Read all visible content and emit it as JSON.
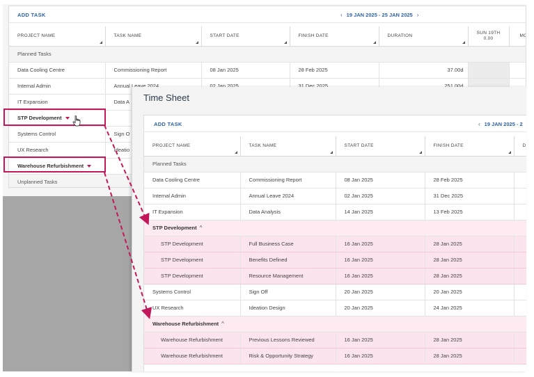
{
  "back": {
    "add_task": "ADD TASK",
    "date_range": "19 JAN 2025 - 25 JAN 2025",
    "prev_icon": "chevron-left-icon",
    "next_icon": "chevron-right-icon",
    "columns": [
      "PROJECT NAME",
      "TASK NAME",
      "START DATE",
      "FINISH DATE",
      "DURATION"
    ],
    "day_col": {
      "day": "SUN 19TH",
      "value": "0.00"
    },
    "next_col_partial": "MO",
    "section_planned": "Planned Tasks",
    "rows": [
      {
        "project": "Data Cooling Centre",
        "task": "Commissioning Report",
        "start": "08 Jan 2025",
        "finish": "28 Feb 2025",
        "duration": "37.00d"
      },
      {
        "project": "Internal Admin",
        "task": "Annual Leave 2024",
        "start": "02 Jan 2025",
        "finish": "31 Dec 2025",
        "duration": "251.00d"
      },
      {
        "project": "IT Expansion",
        "task": "Data A",
        "start": "",
        "finish": "",
        "duration": ""
      }
    ],
    "group_stp": "STP Development",
    "rows2": [
      {
        "project": "Systems Control",
        "task": "Sign O"
      },
      {
        "project": "UX Research",
        "task": "Ideatio"
      }
    ],
    "group_warehouse": "Warehouse Refurbishment",
    "section_unplanned": "Unplanned Tasks"
  },
  "front": {
    "title": "Time Sheet",
    "add_task": "ADD TASK",
    "date_range": "19 JAN 2025 - 2",
    "columns": [
      "PROJECT NAME",
      "TASK NAME",
      "START DATE",
      "FINISH DATE",
      "DU"
    ],
    "section_planned": "Planned Tasks",
    "rows": [
      {
        "project": "Data Cooling Centre",
        "task": "Commissioning Report",
        "start": "08 Jan 2025",
        "finish": "28 Feb 2025"
      },
      {
        "project": "Internal Admin",
        "task": "Annual Leave 2024",
        "start": "02 Jan 2025",
        "finish": "31 Dec 2025"
      },
      {
        "project": "IT Expansion",
        "task": "Data Analysis",
        "start": "14 Jan 2025",
        "finish": "13 Feb 2025"
      }
    ],
    "group_stp": "STP Development",
    "stp_children": [
      {
        "project": "STP Development",
        "task": "Full Business Case",
        "start": "16 Jan 2025",
        "finish": "28 Jan 2025"
      },
      {
        "project": "STP Development",
        "task": "Benefits Defined",
        "start": "16 Jan 2025",
        "finish": "28 Jan 2025"
      },
      {
        "project": "STP Development",
        "task": "Resource Management",
        "start": "16 Jan 2025",
        "finish": "28 Jan 2025"
      }
    ],
    "rows2": [
      {
        "project": "Systems Control",
        "task": "Sign Off",
        "start": "20 Jan 2025",
        "finish": "20 Jan 2025"
      },
      {
        "project": "UX Research",
        "task": "Ideation Design",
        "start": "20 Jan 2025",
        "finish": "24 Jan 2025"
      }
    ],
    "group_warehouse": "Warehouse Refurbishment",
    "warehouse_children": [
      {
        "project": "Warehouse Refurbishment",
        "task": "Previous Lessons Reviewed",
        "start": "16 Jan 2025",
        "finish": "28 Jan 2025"
      },
      {
        "project": "Warehouse Refurbishment",
        "task": "Risk & Opportunity Strategy",
        "start": "16 Jan 2025",
        "finish": "28 Jan 2025"
      }
    ]
  },
  "colors": {
    "accent": "#2f63a6",
    "highlight": "#c2185b",
    "group_bg": "#fce4ee"
  }
}
